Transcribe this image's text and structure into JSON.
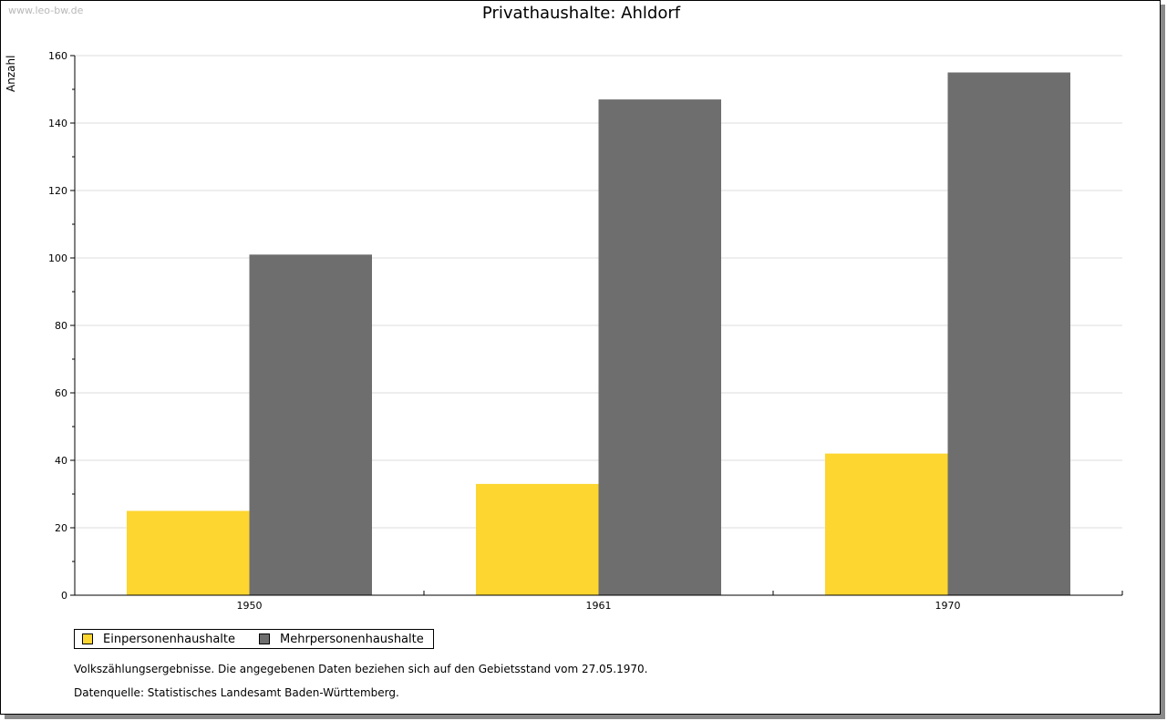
{
  "watermark": "www.leo-bw.de",
  "chart_data": {
    "type": "bar",
    "title": "Privathaushalte: Ahldorf",
    "ylabel": "Anzahl",
    "xlabel": "",
    "categories": [
      "1950",
      "1961",
      "1970"
    ],
    "series": [
      {
        "name": "Einpersonenhaushalte",
        "values": [
          25,
          33,
          42
        ],
        "color": "#fdd62f"
      },
      {
        "name": "Mehrpersonenhaushalte",
        "values": [
          101,
          147,
          155
        ],
        "color": "#6e6e6e"
      }
    ],
    "ylim": [
      0,
      160
    ],
    "yticks": [
      0,
      20,
      40,
      60,
      80,
      100,
      120,
      140,
      160
    ],
    "grid": true,
    "legend_position": "bottom-left"
  },
  "notes": {
    "line1": "Volkszählungsergebnisse. Die angegebenen Daten beziehen sich auf den Gebietsstand vom 27.05.1970.",
    "line2": "Datenquelle: Statistisches Landesamt Baden-Württemberg."
  }
}
